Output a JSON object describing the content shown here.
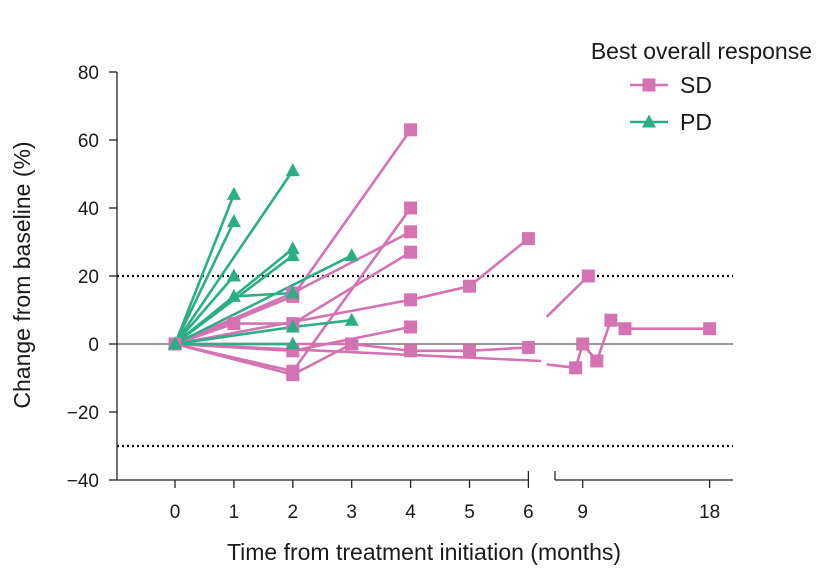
{
  "chart_data": {
    "type": "line",
    "title": "",
    "xlabel": "Time from treatment initiation (months)",
    "ylabel": "Change from baseline (%)",
    "ylim": [
      -40,
      80
    ],
    "yticks": [
      -40,
      -20,
      0,
      20,
      40,
      60,
      80
    ],
    "ytick_labels": [
      "−40",
      "−20",
      "0",
      "20",
      "40",
      "60",
      "80"
    ],
    "xticks_left": [
      0,
      1,
      2,
      3,
      4,
      5,
      6
    ],
    "xtick_labels_left": [
      "0",
      "1",
      "2",
      "3",
      "4",
      "5",
      "6"
    ],
    "xticks_right": [
      9,
      18
    ],
    "xtick_labels_right": [
      "9",
      "18"
    ],
    "axis_break_after": 6,
    "reference_lines": [
      {
        "y": 20,
        "style": "dotted"
      },
      {
        "y": -30,
        "style": "dotted"
      },
      {
        "y": 0,
        "style": "solid"
      }
    ],
    "legend": {
      "title": "Best overall response",
      "position": "top-right",
      "entries": [
        {
          "label": "SD",
          "marker": "square",
          "color": "#d472b2"
        },
        {
          "label": "PD",
          "marker": "triangle",
          "color": "#2bae85"
        }
      ]
    },
    "series": [
      {
        "name": "SD",
        "group": "SD",
        "x": [
          0,
          2,
          4
        ],
        "y": [
          0,
          14,
          63
        ]
      },
      {
        "name": "SD",
        "group": "SD",
        "x": [
          0,
          2,
          4
        ],
        "y": [
          0,
          -8,
          40
        ]
      },
      {
        "name": "SD",
        "group": "SD",
        "x": [
          0,
          2,
          4
        ],
        "y": [
          0,
          15,
          33
        ]
      },
      {
        "name": "SD",
        "group": "SD",
        "x": [
          0,
          1,
          2,
          4
        ],
        "y": [
          0,
          6,
          6,
          27
        ]
      },
      {
        "name": "SD",
        "group": "SD",
        "x": [
          0,
          4,
          5,
          6
        ],
        "y": [
          0,
          13,
          17,
          31
        ]
      },
      {
        "name": "SD",
        "group": "SD",
        "x": [
          0,
          2,
          4
        ],
        "y": [
          0,
          -2,
          5
        ]
      },
      {
        "name": "SD",
        "group": "SD",
        "x": [
          0,
          3,
          4,
          5,
          6
        ],
        "y": [
          0,
          0,
          -2,
          -2,
          -1
        ]
      },
      {
        "name": "SD",
        "group": "SD",
        "x": [
          0,
          2,
          3
        ],
        "y": [
          0,
          -9,
          0
        ]
      },
      {
        "name": "SD",
        "group": "SD",
        "x": [
          6.45,
          9.4
        ],
        "y": [
          8,
          20
        ],
        "start_marker": false
      },
      {
        "name": "SD",
        "group": "SD",
        "x": [
          0,
          6.06,
          6.45,
          8.5,
          9,
          10,
          11,
          12,
          13,
          18
        ],
        "y": [
          0,
          -5,
          -6,
          -7,
          0,
          -5,
          7,
          4.5,
          4.5,
          4.5
        ],
        "markers": [
          true,
          false,
          false,
          true,
          true,
          true,
          true,
          true,
          false,
          true
        ]
      },
      {
        "name": "PD",
        "group": "PD",
        "x": [
          0,
          1
        ],
        "y": [
          0,
          44
        ]
      },
      {
        "name": "PD",
        "group": "PD",
        "x": [
          0,
          1
        ],
        "y": [
          0,
          36
        ]
      },
      {
        "name": "PD",
        "group": "PD",
        "x": [
          0,
          1
        ],
        "y": [
          0,
          20
        ]
      },
      {
        "name": "PD",
        "group": "PD",
        "x": [
          0,
          1,
          2
        ],
        "y": [
          0,
          14,
          15
        ]
      },
      {
        "name": "PD",
        "group": "PD",
        "x": [
          0,
          2
        ],
        "y": [
          0,
          51
        ]
      },
      {
        "name": "PD",
        "group": "PD",
        "x": [
          0,
          2
        ],
        "y": [
          0,
          28
        ]
      },
      {
        "name": "PD",
        "group": "PD",
        "x": [
          0,
          2
        ],
        "y": [
          0,
          26
        ]
      },
      {
        "name": "PD",
        "group": "PD",
        "x": [
          0,
          3
        ],
        "y": [
          0,
          26
        ]
      },
      {
        "name": "PD",
        "group": "PD",
        "x": [
          0,
          2,
          3
        ],
        "y": [
          0,
          5,
          7
        ]
      },
      {
        "name": "PD",
        "group": "PD",
        "x": [
          0,
          2
        ],
        "y": [
          0,
          0
        ]
      }
    ]
  }
}
